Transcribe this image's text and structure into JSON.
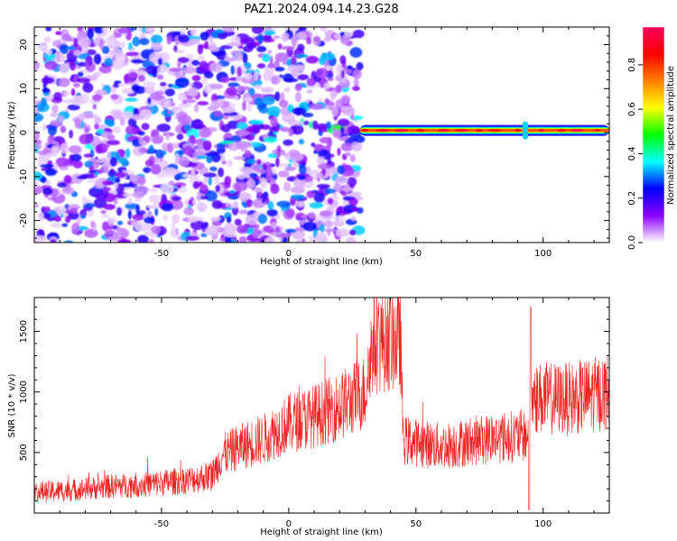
{
  "title": "PAZ1.2024.094.14.23.G28",
  "chart_data": [
    {
      "type": "heatmap",
      "xlabel": "Height of straight line (km)",
      "ylabel": "Frequency (Hz)",
      "xlim": [
        -100,
        126
      ],
      "ylim": [
        -25,
        24
      ],
      "xticks": [
        -50,
        0,
        50,
        100
      ],
      "xtick_labels": [
        "-50",
        "0",
        "50",
        "100"
      ],
      "yticks": [
        -20,
        -10,
        0,
        10,
        20
      ],
      "ytick_labels": [
        "-20",
        "-10",
        "0",
        "10",
        "20"
      ],
      "colorbar": {
        "label": "Normalized spectral amplitude",
        "range": [
          0,
          0.97
        ],
        "ticks": [
          0.0,
          0.2,
          0.4,
          0.6,
          0.8
        ],
        "tick_labels": [
          "0.0",
          "0.2",
          "0.4",
          "0.6",
          "0.8"
        ],
        "colormap": [
          "#ffffff",
          "#8a00ff",
          "#0000ff",
          "#00ffff",
          "#00ff00",
          "#ffff00",
          "#ff8000",
          "#ff0000",
          "#ff0060"
        ]
      },
      "regions": [
        {
          "x_range": [
            -100,
            28
          ],
          "kind": "scattered noise blobs",
          "freq_range": [
            -25,
            24
          ],
          "amplitude_range": [
            0.02,
            0.35
          ]
        },
        {
          "x_range": [
            28,
            126
          ],
          "kind": "narrow carrier line",
          "freq_center": 0.5,
          "amplitude_range": [
            0.2,
            0.97
          ]
        }
      ],
      "grid": false
    },
    {
      "type": "line",
      "xlabel": "Height of straight line (km)",
      "ylabel": "SNR (10 * v/v)",
      "xlim": [
        -100,
        126
      ],
      "ylim": [
        0,
        1780
      ],
      "xticks": [
        -50,
        0,
        50,
        100
      ],
      "xtick_labels": [
        "-50",
        "0",
        "50",
        "100"
      ],
      "yticks": [
        500,
        1000,
        1500
      ],
      "ytick_labels": [
        "500",
        "1000",
        "1500"
      ],
      "series": [
        {
          "color": "#ee2222",
          "x": [
            -100,
            -85,
            -70,
            -55,
            -40,
            -30,
            -26,
            -20,
            -10,
            0,
            10,
            20,
            30,
            33,
            40,
            44,
            45,
            60,
            80,
            94,
            95,
            110,
            126
          ],
          "values": [
            170,
            190,
            220,
            240,
            270,
            310,
            480,
            540,
            610,
            740,
            800,
            880,
            1000,
            1400,
            1450,
            1420,
            600,
            550,
            620,
            640,
            950,
            940,
            1000
          ]
        }
      ],
      "grid": false
    }
  ]
}
